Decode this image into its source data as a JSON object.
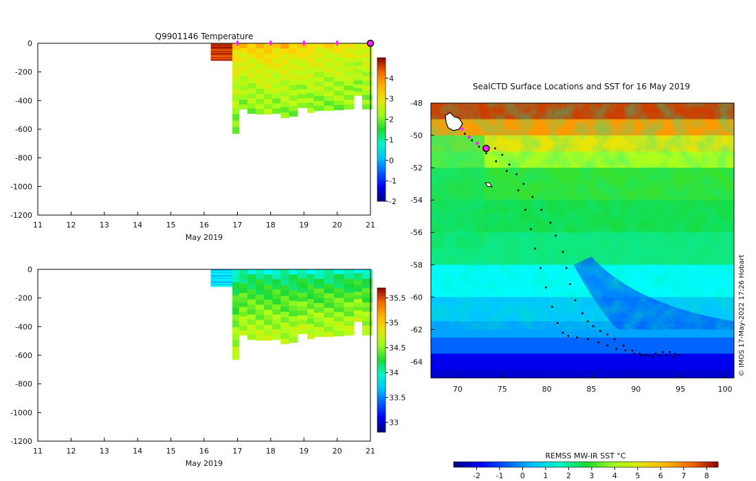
{
  "chart_data": [
    {
      "id": "temp_profile",
      "type": "heatmap",
      "title": "Q9901146  Temperature",
      "xlabel": "May 2019",
      "ylabel": "",
      "xlim": [
        11,
        21
      ],
      "ylim": [
        -1200,
        0
      ],
      "x_ticks": [
        "11",
        "12",
        "13",
        "14",
        "15",
        "16",
        "17",
        "18",
        "19",
        "20",
        "21"
      ],
      "y_ticks": [
        "0",
        "-200",
        "-400",
        "-600",
        "-800",
        "-1000",
        "-1200"
      ],
      "colorbar": {
        "min": -2,
        "max": 5,
        "ticks": [
          "4",
          "3",
          "2",
          "1",
          "0",
          "-1",
          "-2"
        ]
      },
      "surface_markers_day": [
        17.0,
        18.0,
        19.0,
        20.0
      ],
      "latest_marker_day": 21.0,
      "profiles": [
        {
          "t0": 16.2,
          "t1": 16.85,
          "maxdepth": -120,
          "surf": 4.8,
          "deep": 4.5
        },
        {
          "t0": 16.85,
          "t1": 17.05,
          "maxdepth": -630,
          "surf": 3.5,
          "deep": 2.0
        },
        {
          "t0": 17.05,
          "t1": 17.3,
          "maxdepth": -460,
          "surf": 3.4,
          "deep": 2.1
        },
        {
          "t0": 17.3,
          "t1": 17.55,
          "maxdepth": -490,
          "surf": 3.4,
          "deep": 2.1
        },
        {
          "t0": 17.55,
          "t1": 17.8,
          "maxdepth": -495,
          "surf": 3.5,
          "deep": 2.1
        },
        {
          "t0": 17.8,
          "t1": 18.05,
          "maxdepth": -495,
          "surf": 3.6,
          "deep": 2.2
        },
        {
          "t0": 18.05,
          "t1": 18.3,
          "maxdepth": -490,
          "surf": 3.4,
          "deep": 2.1
        },
        {
          "t0": 18.3,
          "t1": 18.55,
          "maxdepth": -520,
          "surf": 3.5,
          "deep": 2.1
        },
        {
          "t0": 18.55,
          "t1": 18.8,
          "maxdepth": -510,
          "surf": 3.3,
          "deep": 2.1
        },
        {
          "t0": 18.8,
          "t1": 19.1,
          "maxdepth": -450,
          "surf": 3.3,
          "deep": 2.1
        },
        {
          "t0": 19.1,
          "t1": 19.3,
          "maxdepth": -485,
          "surf": 3.4,
          "deep": 2.1
        },
        {
          "t0": 19.3,
          "t1": 19.6,
          "maxdepth": -470,
          "surf": 3.1,
          "deep": 2.1
        },
        {
          "t0": 19.6,
          "t1": 19.9,
          "maxdepth": -470,
          "surf": 3.1,
          "deep": 2.1
        },
        {
          "t0": 19.9,
          "t1": 20.2,
          "maxdepth": -465,
          "surf": 3.1,
          "deep": 2.1
        },
        {
          "t0": 20.2,
          "t1": 20.5,
          "maxdepth": -460,
          "surf": 3.0,
          "deep": 2.1
        },
        {
          "t0": 20.5,
          "t1": 20.75,
          "maxdepth": -365,
          "surf": 2.9,
          "deep": 2.1
        },
        {
          "t0": 20.75,
          "t1": 21.05,
          "maxdepth": -460,
          "surf": 3.0,
          "deep": 2.1
        }
      ]
    },
    {
      "id": "sal_profile",
      "type": "heatmap",
      "title": "",
      "xlabel": "May 2019",
      "ylabel": "",
      "xlim": [
        11,
        21
      ],
      "ylim": [
        -1200,
        0
      ],
      "x_ticks": [
        "11",
        "12",
        "13",
        "14",
        "15",
        "16",
        "17",
        "18",
        "19",
        "20",
        "21"
      ],
      "y_ticks": [
        "0",
        "-200",
        "-400",
        "-600",
        "-800",
        "-1000",
        "-1200"
      ],
      "colorbar": {
        "min": 32.8,
        "max": 35.7,
        "ticks": [
          "35.5",
          "35",
          "34.5",
          "34",
          "33.5",
          "33"
        ]
      },
      "profiles": [
        {
          "t0": 16.2,
          "t1": 16.85,
          "maxdepth": -120,
          "surf": 33.75,
          "deep": 33.75
        },
        {
          "t0": 16.85,
          "t1": 17.05,
          "maxdepth": -630,
          "surf": 33.95,
          "deep": 34.65
        },
        {
          "t0": 17.05,
          "t1": 17.3,
          "maxdepth": -460,
          "surf": 33.95,
          "deep": 34.65
        },
        {
          "t0": 17.3,
          "t1": 17.55,
          "maxdepth": -490,
          "surf": 33.95,
          "deep": 34.65
        },
        {
          "t0": 17.55,
          "t1": 17.8,
          "maxdepth": -495,
          "surf": 33.95,
          "deep": 34.65
        },
        {
          "t0": 17.8,
          "t1": 18.05,
          "maxdepth": -495,
          "surf": 33.95,
          "deep": 34.65
        },
        {
          "t0": 18.05,
          "t1": 18.3,
          "maxdepth": -490,
          "surf": 33.95,
          "deep": 34.65
        },
        {
          "t0": 18.3,
          "t1": 18.55,
          "maxdepth": -520,
          "surf": 33.95,
          "deep": 34.65
        },
        {
          "t0": 18.55,
          "t1": 18.8,
          "maxdepth": -510,
          "surf": 33.95,
          "deep": 34.65
        },
        {
          "t0": 18.8,
          "t1": 19.1,
          "maxdepth": -450,
          "surf": 33.95,
          "deep": 34.65
        },
        {
          "t0": 19.1,
          "t1": 19.3,
          "maxdepth": -485,
          "surf": 33.95,
          "deep": 34.65
        },
        {
          "t0": 19.3,
          "t1": 19.6,
          "maxdepth": -470,
          "surf": 33.95,
          "deep": 34.65
        },
        {
          "t0": 19.6,
          "t1": 19.9,
          "maxdepth": -470,
          "surf": 33.95,
          "deep": 34.65
        },
        {
          "t0": 19.9,
          "t1": 20.2,
          "maxdepth": -465,
          "surf": 33.95,
          "deep": 34.65
        },
        {
          "t0": 20.2,
          "t1": 20.5,
          "maxdepth": -460,
          "surf": 33.95,
          "deep": 34.65
        },
        {
          "t0": 20.5,
          "t1": 20.75,
          "maxdepth": -365,
          "surf": 33.95,
          "deep": 34.65
        },
        {
          "t0": 20.75,
          "t1": 21.05,
          "maxdepth": -460,
          "surf": 33.95,
          "deep": 34.65
        }
      ]
    },
    {
      "id": "sst_map",
      "type": "heatmap",
      "title": "SealCTD Surface Locations and SST for 16 May 2019",
      "xlim": [
        67,
        101
      ],
      "ylim": [
        -65,
        -48
      ],
      "x_ticks": [
        "70",
        "75",
        "80",
        "85",
        "90",
        "95",
        "100"
      ],
      "y_ticks": [
        "-48",
        "-50",
        "-52",
        "-54",
        "-56",
        "-58",
        "-60",
        "-62",
        "-64"
      ],
      "colorbar_label": "REMSS MW-IR SST °C",
      "colorbar": {
        "min": -3,
        "max": 8.5,
        "ticks": [
          "-2",
          "-1",
          "0",
          "1",
          "2",
          "3",
          "4",
          "5",
          "6",
          "7",
          "8"
        ]
      },
      "track_lon": [
        69.8,
        70.8,
        71.6,
        72.4,
        73.2,
        74.3,
        75.5,
        76.8,
        77.6,
        78.2,
        78.7,
        79.3,
        79.9,
        80.6,
        81.2,
        81.8,
        82.4,
        83.4,
        84.6,
        85.8,
        86.8,
        87.8,
        88.8,
        89.8,
        90.6,
        91.4,
        92.2,
        93.0,
        93.8,
        94.4,
        94.8,
        94.2,
        93.4,
        92.6,
        91.8,
        91.0,
        90.4,
        89.6,
        88.6,
        87.6,
        86.8,
        86.0,
        85.2,
        84.6,
        84.0,
        83.2,
        82.6,
        82.2,
        81.8,
        81.0,
        80.4,
        79.4,
        78.4,
        77.4,
        76.6,
        75.8,
        75.0,
        74.2,
        73.2
      ],
      "track_lat": [
        -49.4,
        -49.9,
        -50.3,
        -50.7,
        -51.1,
        -51.6,
        -52.2,
        -53.4,
        -54.6,
        -55.8,
        -57.0,
        -58.2,
        -59.4,
        -60.6,
        -61.6,
        -62.2,
        -62.4,
        -62.5,
        -62.6,
        -62.8,
        -63.0,
        -63.2,
        -63.3,
        -63.5,
        -63.6,
        -63.6,
        -63.5,
        -63.4,
        -63.4,
        -63.5,
        -63.6,
        -63.7,
        -63.6,
        -63.6,
        -63.7,
        -63.6,
        -63.5,
        -63.3,
        -63.0,
        -62.6,
        -62.3,
        -62.1,
        -61.8,
        -61.5,
        -61.0,
        -60.2,
        -59.2,
        -58.2,
        -57.2,
        -56.2,
        -55.4,
        -54.6,
        -53.8,
        -53.0,
        -52.4,
        -51.8,
        -51.2,
        -50.8,
        -50.8
      ],
      "purple_markers_lon": [
        70.5,
        71.3,
        72.2,
        73.0
      ],
      "purple_markers_lat": [
        -49.6,
        -50.1,
        -50.5,
        -50.9
      ],
      "current_lon": 73.2,
      "current_lat": -50.8
    }
  ],
  "credit": "© IMOS 17-May-2022 17:26 Hobart",
  "colors": {
    "dot_magenta": "#ff22ff",
    "track": "#000000"
  }
}
